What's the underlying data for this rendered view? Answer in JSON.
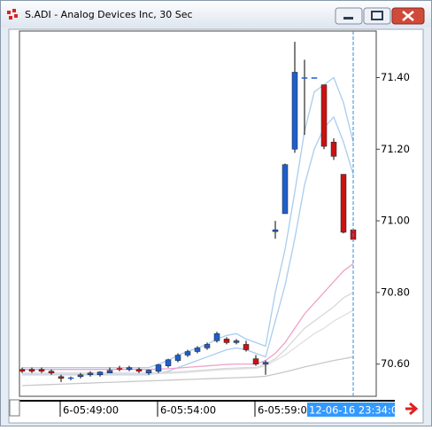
{
  "chart_data": {
    "type": "candlestick",
    "title": "S.ADI - Analog Devices Inc, 30 Sec",
    "categories": [
      null,
      null,
      null,
      null,
      "6-05:49:00",
      null,
      null,
      null,
      null,
      null,
      null,
      null,
      null,
      null,
      "6-05:54:00",
      null,
      null,
      null,
      null,
      null,
      null,
      null,
      null,
      null,
      "6-05:59:00",
      null,
      null,
      null,
      null,
      null,
      null,
      null,
      null,
      null,
      "12-06-16 23:34:00"
    ],
    "crosshair": true,
    "up_color": "#1f5fcc",
    "down_color": "#cc1111",
    "open": [
      70.585,
      70.585,
      70.585,
      70.58,
      70.565,
      70.56,
      70.565,
      70.57,
      70.57,
      70.575,
      70.588,
      70.585,
      70.585,
      70.575,
      70.58,
      70.595,
      70.61,
      70.625,
      70.635,
      70.645,
      70.665,
      70.67,
      70.66,
      70.655,
      70.615,
      70.6,
      70.97,
      71.02,
      71.2,
      71.4,
      71.4,
      71.38,
      71.22,
      71.13,
      70.975
    ],
    "high": [
      70.59,
      70.59,
      70.59,
      70.585,
      70.57,
      70.565,
      70.575,
      70.58,
      70.58,
      70.59,
      70.595,
      70.595,
      70.59,
      70.585,
      70.6,
      70.615,
      70.63,
      70.64,
      70.65,
      70.66,
      70.69,
      70.675,
      70.67,
      70.665,
      70.625,
      70.61,
      71.0,
      71.16,
      71.5,
      71.45,
      71.4,
      71.38,
      71.23,
      71.13,
      70.975
    ],
    "low": [
      70.575,
      70.575,
      70.575,
      70.57,
      70.55,
      70.555,
      70.56,
      70.565,
      70.565,
      70.575,
      70.58,
      70.58,
      70.575,
      70.57,
      70.575,
      70.59,
      70.605,
      70.62,
      70.63,
      70.64,
      70.66,
      70.655,
      70.655,
      70.635,
      70.595,
      70.57,
      70.95,
      71.02,
      71.19,
      71.24,
      71.4,
      71.2,
      71.17,
      70.965,
      70.948
    ],
    "close": [
      70.58,
      70.58,
      70.58,
      70.575,
      70.56,
      70.562,
      70.57,
      70.575,
      70.578,
      70.582,
      70.585,
      70.59,
      70.58,
      70.583,
      70.598,
      70.612,
      70.625,
      70.635,
      70.645,
      70.655,
      70.685,
      70.66,
      70.665,
      70.64,
      70.6,
      70.605,
      70.975,
      71.157,
      71.415,
      71.4,
      71.4,
      71.208,
      71.18,
      70.968,
      70.948
    ],
    "series": [
      {
        "color": "#a9cdee",
        "values": [
          70.59,
          70.59,
          70.59,
          70.59,
          70.59,
          70.59,
          70.59,
          70.59,
          70.59,
          70.59,
          70.59,
          70.59,
          70.59,
          70.59,
          70.6,
          70.61,
          70.625,
          70.635,
          70.645,
          70.655,
          70.67,
          70.68,
          70.685,
          70.67,
          70.66,
          70.65,
          70.8,
          70.92,
          71.08,
          71.25,
          71.36,
          71.38,
          71.4,
          71.33,
          71.22
        ]
      },
      {
        "color": "#a9cdee",
        "values": [
          70.57,
          70.57,
          70.57,
          70.57,
          70.57,
          70.57,
          70.57,
          70.57,
          70.57,
          70.57,
          70.57,
          70.57,
          70.57,
          70.57,
          70.575,
          70.58,
          70.59,
          70.6,
          70.61,
          70.62,
          70.63,
          70.64,
          70.645,
          70.64,
          70.63,
          70.62,
          70.72,
          70.82,
          70.95,
          71.1,
          71.2,
          71.26,
          71.29,
          71.22,
          71.13
        ]
      },
      {
        "color": "#f0a0c8",
        "values": [
          70.585,
          70.585,
          70.585,
          70.585,
          70.585,
          70.585,
          70.585,
          70.585,
          70.585,
          70.585,
          70.585,
          70.585,
          70.585,
          70.585,
          70.586,
          70.587,
          70.589,
          70.591,
          70.593,
          70.595,
          70.597,
          70.599,
          70.6,
          70.6,
          70.6,
          70.61,
          70.63,
          70.66,
          70.7,
          70.74,
          70.77,
          70.8,
          70.83,
          70.86,
          70.88
        ]
      },
      {
        "color": "#d8d8d8",
        "values": [
          70.575,
          70.575,
          70.575,
          70.575,
          70.575,
          70.575,
          70.575,
          70.575,
          70.575,
          70.575,
          70.575,
          70.575,
          70.575,
          70.575,
          70.576,
          70.577,
          70.578,
          70.58,
          70.582,
          70.584,
          70.586,
          70.588,
          70.589,
          70.59,
          70.59,
          70.6,
          70.615,
          70.64,
          70.67,
          70.7,
          70.72,
          70.74,
          70.76,
          70.785,
          70.8
        ]
      },
      {
        "color": "#e0e0e0",
        "values": [
          70.572,
          70.572,
          70.572,
          70.572,
          70.572,
          70.572,
          70.572,
          70.572,
          70.572,
          70.572,
          70.572,
          70.572,
          70.572,
          70.572,
          70.573,
          70.574,
          70.575,
          70.577,
          70.579,
          70.581,
          70.583,
          70.585,
          70.586,
          70.587,
          70.588,
          70.595,
          70.61,
          70.625,
          70.645,
          70.665,
          70.685,
          70.7,
          70.72,
          70.735,
          70.75
        ]
      },
      {
        "color": "#c8c8c8",
        "values": [
          70.54,
          70.541,
          70.542,
          70.543,
          70.544,
          70.545,
          70.546,
          70.547,
          70.548,
          70.549,
          70.55,
          70.551,
          70.552,
          70.553,
          70.554,
          70.555,
          70.556,
          70.557,
          70.558,
          70.559,
          70.56,
          70.561,
          70.562,
          70.563,
          70.564,
          70.566,
          70.572,
          70.578,
          70.585,
          70.592,
          70.598,
          70.604,
          70.61,
          70.615,
          70.62
        ]
      }
    ],
    "ylim": [
      70.51,
      71.53
    ],
    "yticks": [
      {
        "value": 71.4,
        "label": "71.40"
      },
      {
        "value": 71.2,
        "label": "71.20"
      },
      {
        "value": 71.0,
        "label": "71.00"
      },
      {
        "value": 70.8,
        "label": "70.80"
      },
      {
        "value": 70.6,
        "label": "70.60"
      }
    ]
  }
}
